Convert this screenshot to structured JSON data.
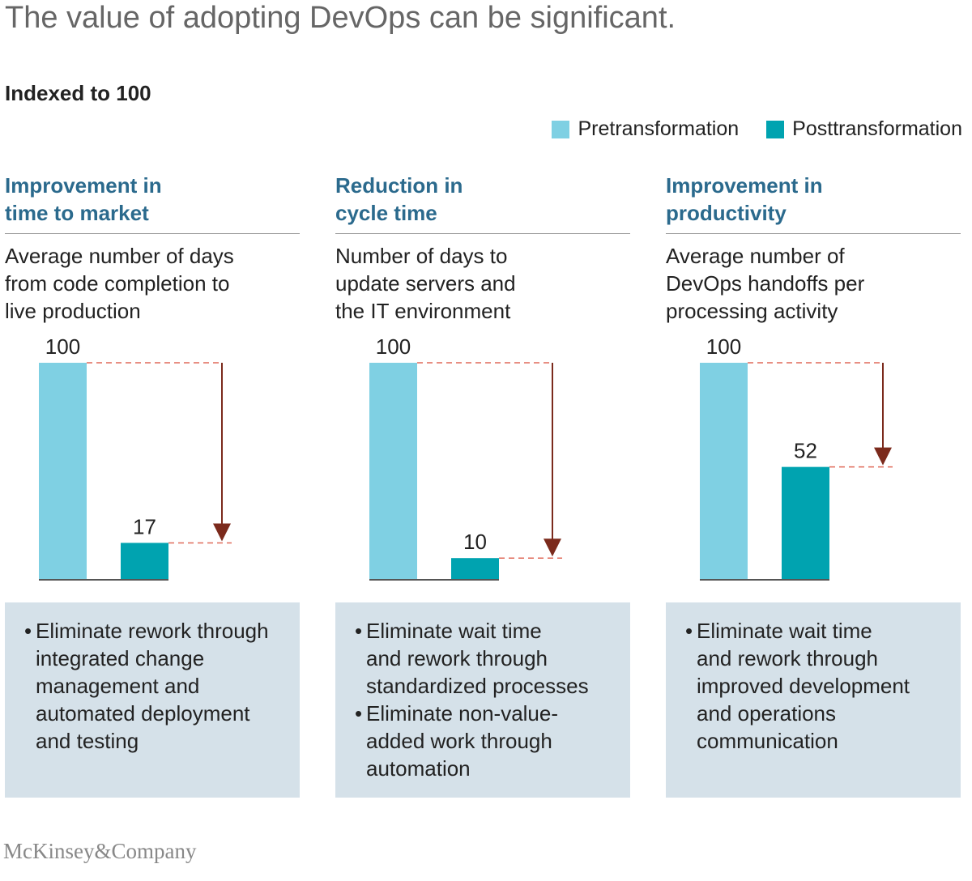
{
  "title": "The value of adopting DevOps can be significant.",
  "subtitle": "Indexed to 100",
  "legend": [
    {
      "label": "Pretransformation",
      "color": "#7fd0e3"
    },
    {
      "label": "Posttransformation",
      "color": "#00a3b0"
    }
  ],
  "colors": {
    "arrow": "#7b2a1c",
    "axis": "#555555",
    "heading": "#2b6a8d",
    "notes_bg": "#d5e1e9"
  },
  "chart_data": [
    {
      "type": "bar",
      "heading": [
        "Improvement in",
        "time to market"
      ],
      "description": [
        "Average number of days",
        "from code completion to",
        "live production"
      ],
      "categories": [
        "Pretransformation",
        "Posttransformation"
      ],
      "values": [
        100,
        17
      ],
      "ylim": [
        0,
        100
      ],
      "notes": [
        [
          "Eliminate rework through",
          "integrated change",
          "management and",
          "automated deployment",
          "and testing"
        ]
      ]
    },
    {
      "type": "bar",
      "heading": [
        "Reduction in",
        "cycle time"
      ],
      "description": [
        "Number of days to",
        "update servers and",
        "the IT environment"
      ],
      "categories": [
        "Pretransformation",
        "Posttransformation"
      ],
      "values": [
        100,
        10
      ],
      "ylim": [
        0,
        100
      ],
      "notes": [
        [
          "Eliminate wait time",
          "and rework through",
          "standardized processes"
        ],
        [
          "Eliminate non-value-",
          "added work through",
          "automation"
        ]
      ]
    },
    {
      "type": "bar",
      "heading": [
        "Improvement in",
        "productivity"
      ],
      "description": [
        "Average number of",
        "DevOps handoffs per",
        "processing activity"
      ],
      "categories": [
        "Pretransformation",
        "Posttransformation"
      ],
      "values": [
        100,
        52
      ],
      "ylim": [
        0,
        100
      ],
      "notes": [
        [
          "Eliminate wait time",
          "and rework through",
          "improved development",
          "and operations",
          "communication"
        ]
      ]
    }
  ],
  "footer": "McKinsey&Company"
}
